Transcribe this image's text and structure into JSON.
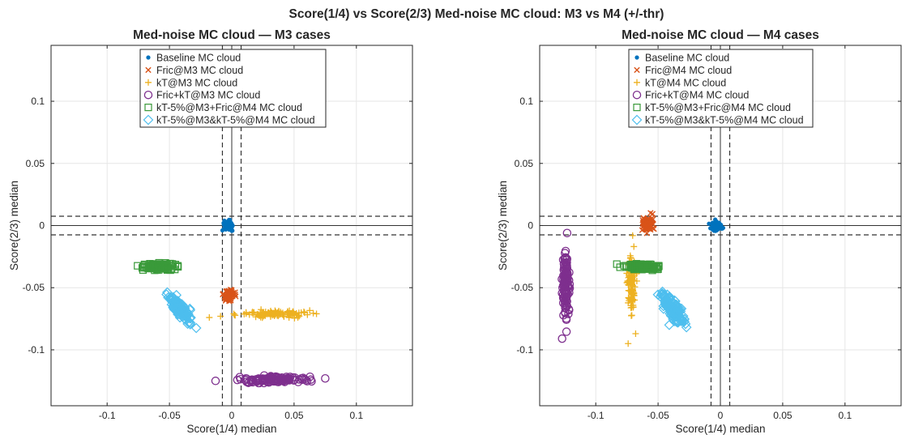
{
  "figure_title": "Score(1/4) vs Score(2/3) Med-noise MC cloud: M3 vs M4 (+/-thr)",
  "colors": {
    "baseline": "#0072BD",
    "fric": "#D95319",
    "kt": "#EDB120",
    "frickt": "#7E2F8E",
    "kt5fric": "#3A9A3A",
    "kt5kt5": "#4DBEEE",
    "grid": "#e6e6e6",
    "axis": "#262626"
  },
  "chart_data": [
    {
      "type": "scatter",
      "title": "Med-noise MC cloud — M3 cases",
      "xlabel": "Score(1/4) median",
      "ylabel": "Score(2/3) median",
      "xlim": [
        -0.145,
        0.145
      ],
      "ylim": [
        -0.145,
        0.145
      ],
      "xticks": [
        -0.1,
        -0.05,
        0,
        0.05,
        0.1
      ],
      "xtick_labels": [
        "-0.1",
        "-0.05",
        "0",
        "0.05",
        "0.1"
      ],
      "yticks": [
        -0.1,
        -0.05,
        0,
        0.05,
        0.1
      ],
      "ytick_labels": [
        "-0.1",
        "-0.05",
        "0",
        "0.05",
        "0.1"
      ],
      "grid": true,
      "threshold": 0.0075,
      "legend_position": "top-center",
      "series": [
        {
          "name": "Baseline MC cloud",
          "marker": "dot",
          "color_key": "baseline",
          "center": [
            -0.003,
            0.0
          ],
          "spread": [
            0.002,
            0.002
          ],
          "n": 60
        },
        {
          "name": "Fric@M3 MC cloud",
          "marker": "x",
          "color_key": "fric",
          "center": [
            -0.002,
            -0.056
          ],
          "spread": [
            0.0025,
            0.002
          ],
          "n": 60
        },
        {
          "name": "kT@M3 MC cloud",
          "marker": "plus",
          "color_key": "kt",
          "center": [
            0.035,
            -0.071
          ],
          "spread": [
            0.013,
            0.0013
          ],
          "n": 120,
          "extra_points": [
            [
              -0.018,
              -0.074
            ],
            [
              -0.009,
              -0.073
            ],
            [
              0.068,
              -0.071
            ]
          ]
        },
        {
          "name": "Fric+kT@M3 MC cloud",
          "marker": "circle",
          "color_key": "frickt",
          "center": [
            0.035,
            -0.124
          ],
          "spread": [
            0.013,
            0.0012
          ],
          "n": 120,
          "extra_points": [
            [
              -0.013,
              -0.125
            ],
            [
              0.075,
              -0.123
            ]
          ]
        },
        {
          "name": "kT-5%@M3+Fric@M4 MC cloud",
          "marker": "square",
          "color_key": "kt5fric",
          "center": [
            -0.058,
            -0.033
          ],
          "spread": [
            0.007,
            0.0012
          ],
          "n": 110
        },
        {
          "name": "kT-5%@M3&kT-5%@M4 MC cloud",
          "marker": "diamond",
          "color_key": "kt5kt5",
          "center": [
            -0.042,
            -0.066
          ],
          "spread": [
            0.0045,
            0.005
          ],
          "n": 140,
          "rho": 0.8
        }
      ]
    },
    {
      "type": "scatter",
      "title": "Med-noise MC cloud — M4 cases",
      "xlabel": "Score(1/4) median",
      "ylabel": "Score(2/3) median",
      "xlim": [
        -0.145,
        0.145
      ],
      "ylim": [
        -0.145,
        0.145
      ],
      "xticks": [
        -0.1,
        -0.05,
        0,
        0.05,
        0.1
      ],
      "xtick_labels": [
        "-0.1",
        "-0.05",
        "0",
        "0.05",
        "0.1"
      ],
      "yticks": [
        -0.1,
        -0.05,
        0,
        0.05,
        0.1
      ],
      "ytick_labels": [
        "-0.1",
        "-0.05",
        "0",
        "0.05",
        "0.1"
      ],
      "grid": true,
      "threshold": 0.0075,
      "legend_position": "top-center",
      "series": [
        {
          "name": "Baseline MC cloud",
          "marker": "dot",
          "color_key": "baseline",
          "center": [
            -0.003,
            0.0
          ],
          "spread": [
            0.002,
            0.002
          ],
          "n": 60
        },
        {
          "name": "Fric@M4 MC cloud",
          "marker": "x",
          "color_key": "fric",
          "center": [
            -0.058,
            0.001
          ],
          "spread": [
            0.002,
            0.003
          ],
          "n": 70
        },
        {
          "name": "kT@M4 MC cloud",
          "marker": "plus",
          "color_key": "kt",
          "center": [
            -0.071,
            -0.045
          ],
          "spread": [
            0.0018,
            0.012
          ],
          "n": 120,
          "extra_points": [
            [
              -0.074,
              -0.095
            ],
            [
              -0.068,
              -0.087
            ]
          ]
        },
        {
          "name": "Fric+kT@M4 MC cloud",
          "marker": "circle",
          "color_key": "frickt",
          "center": [
            -0.124,
            -0.048
          ],
          "spread": [
            0.0015,
            0.013
          ],
          "n": 120,
          "extra_points": [
            [
              -0.127,
              -0.091
            ],
            [
              -0.123,
              -0.006
            ]
          ]
        },
        {
          "name": "kT-5%@M3+Fric@M4 MC cloud",
          "marker": "square",
          "color_key": "kt5fric",
          "center": [
            -0.063,
            -0.033
          ],
          "spread": [
            0.0065,
            0.0013
          ],
          "n": 110
        },
        {
          "name": "kT-5%@M3&kT-5%@M4 MC cloud",
          "marker": "diamond",
          "color_key": "kt5kt5",
          "center": [
            -0.039,
            -0.066
          ],
          "spread": [
            0.0045,
            0.006
          ],
          "n": 140,
          "rho": 0.75
        }
      ]
    }
  ]
}
